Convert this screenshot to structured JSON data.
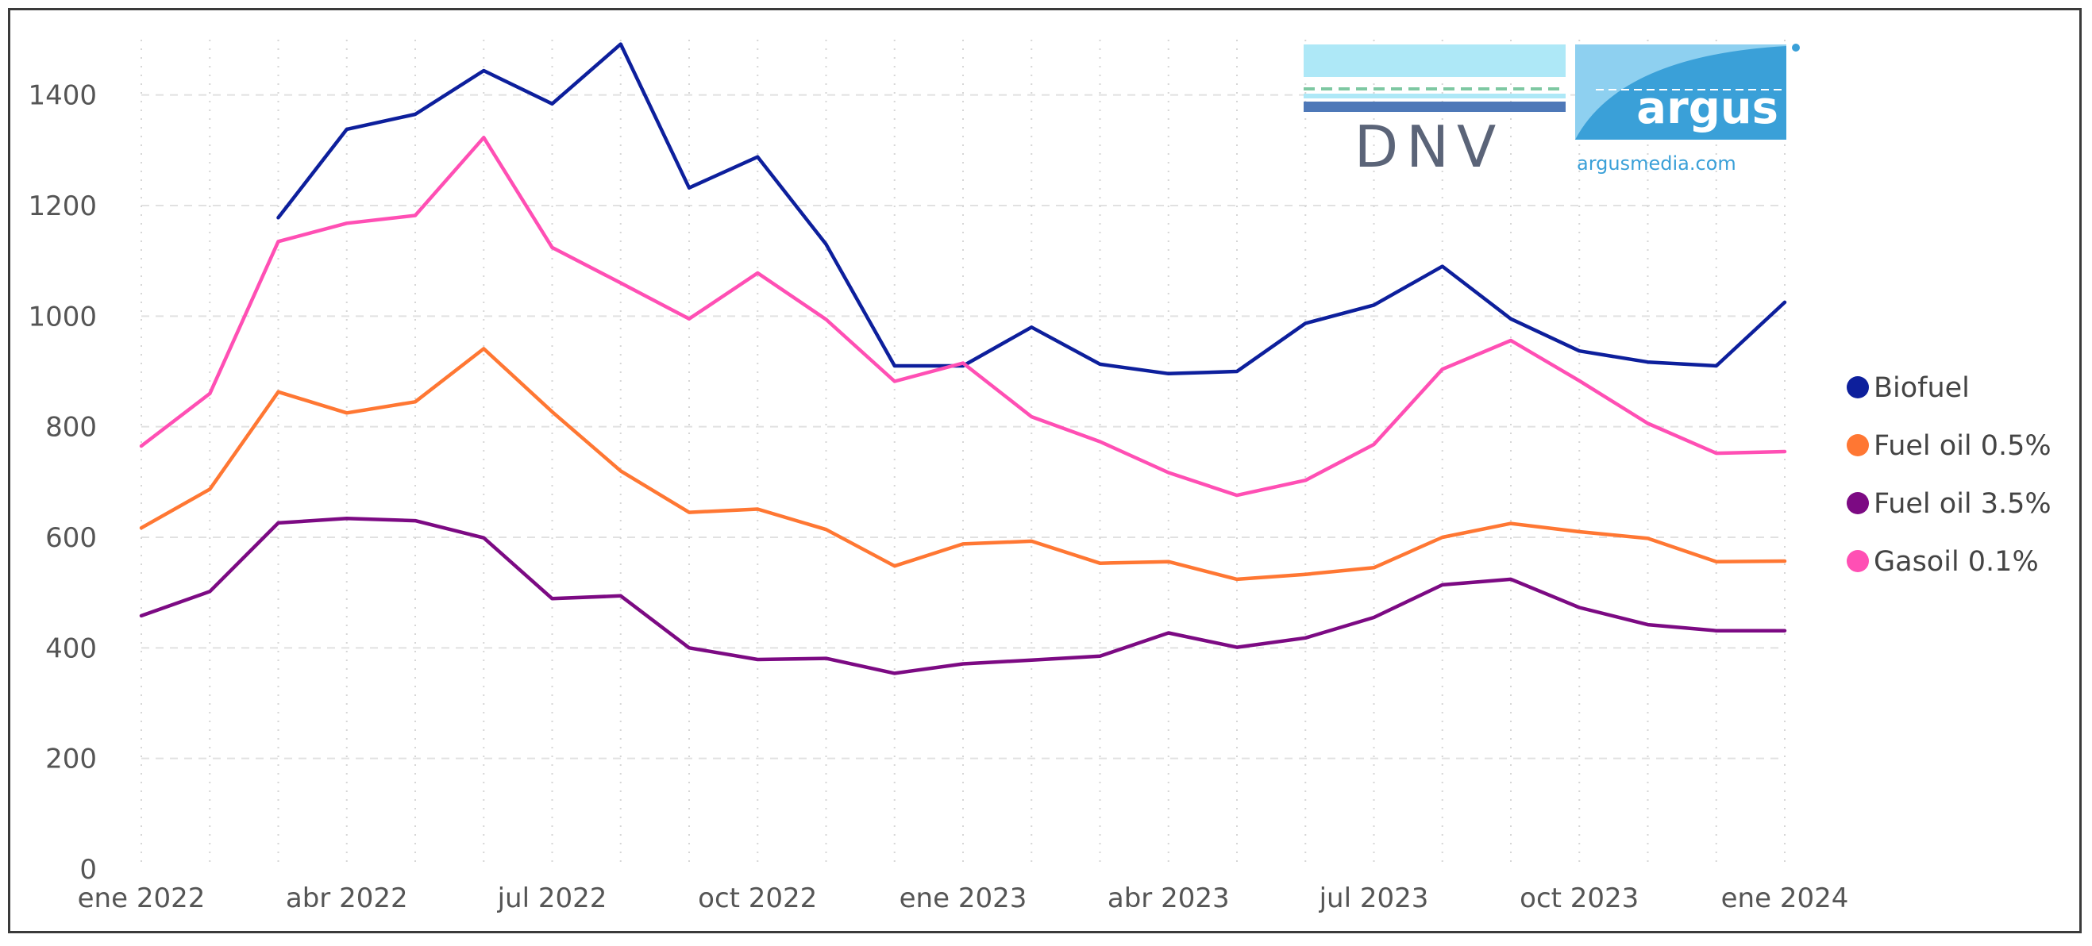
{
  "chart_data": {
    "type": "line",
    "title": "",
    "xlabel": "",
    "ylabel": "",
    "ylim": [
      0,
      1500
    ],
    "yticks": [
      0,
      200,
      400,
      600,
      800,
      1000,
      1200,
      1400
    ],
    "xtick_labels": [
      "ene 2022",
      "abr 2022",
      "jul 2022",
      "oct 2022",
      "ene 2023",
      "abr 2023",
      "jul 2023",
      "oct 2023",
      "ene 2024"
    ],
    "x": [
      "2022-01",
      "2022-02",
      "2022-03",
      "2022-04",
      "2022-05",
      "2022-06",
      "2022-07",
      "2022-08",
      "2022-09",
      "2022-10",
      "2022-11",
      "2022-12",
      "2023-01",
      "2023-02",
      "2023-03",
      "2023-04",
      "2023-05",
      "2023-06",
      "2023-07",
      "2023-08",
      "2023-09",
      "2023-10",
      "2023-11",
      "2023-12",
      "2024-01"
    ],
    "series": [
      {
        "name": "Biofuel",
        "color": "#0d1f9c",
        "values": [
          null,
          null,
          1178,
          1338,
          1365,
          1444,
          1384,
          1492,
          1232,
          1288,
          1130,
          910,
          910,
          980,
          913,
          896,
          900,
          987,
          1020,
          1090,
          995,
          937,
          917,
          910,
          1025
        ]
      },
      {
        "name": "Fuel oil 0.5%",
        "color": "#ff7733",
        "values": [
          617,
          687,
          863,
          825,
          845,
          941,
          827,
          720,
          645,
          651,
          614,
          548,
          588,
          593,
          553,
          556,
          524,
          533,
          545,
          600,
          625,
          610,
          598,
          556,
          557
        ]
      },
      {
        "name": "Fuel oil 3.5%",
        "color": "#7c0a83",
        "values": [
          458,
          502,
          626,
          634,
          630,
          599,
          489,
          494,
          400,
          379,
          381,
          354,
          371,
          378,
          385,
          427,
          401,
          418,
          455,
          514,
          524,
          473,
          442,
          431,
          431
        ]
      },
      {
        "name": "Gasoil 0.1%",
        "color": "#ff4fb4",
        "values": [
          765,
          860,
          1135,
          1168,
          1182,
          1323,
          1124,
          1060,
          995,
          1078,
          994,
          882,
          915,
          818,
          773,
          717,
          676,
          703,
          768,
          904,
          956,
          883,
          806,
          752,
          755
        ]
      }
    ],
    "legend_position": "right",
    "grid": true
  },
  "logos": {
    "dnv_text": "DNV",
    "argus_text": "argus",
    "argus_url_text": "argusmedia.com"
  }
}
